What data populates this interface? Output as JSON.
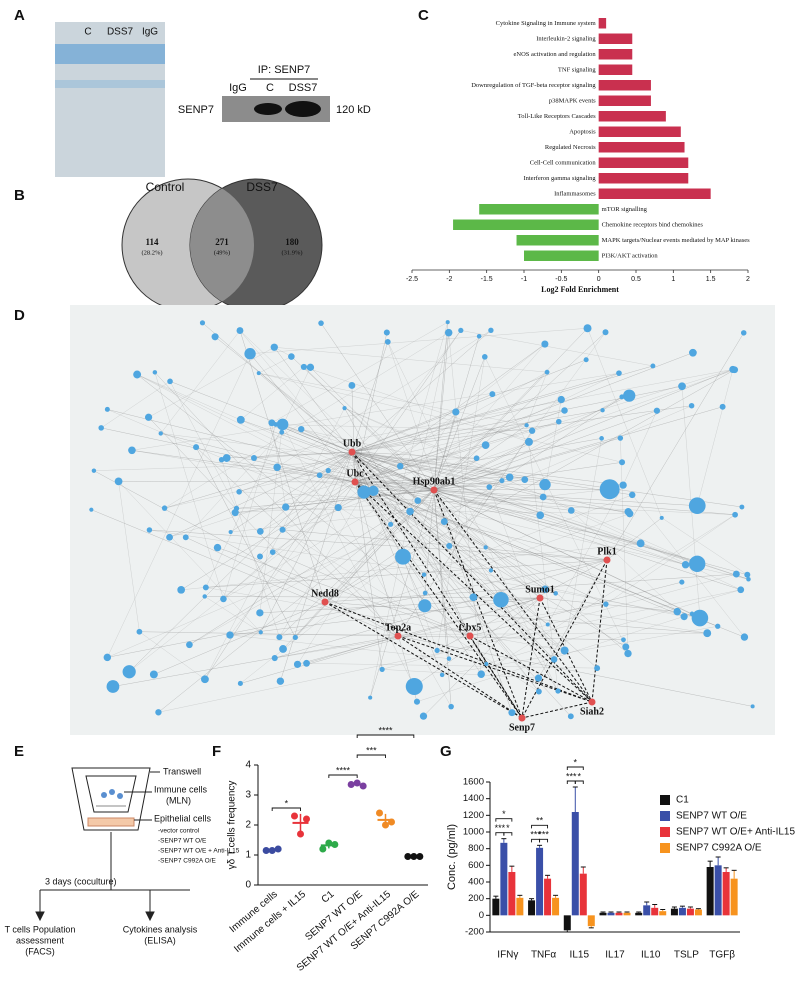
{
  "panel_labels": [
    "A",
    "B",
    "C",
    "D",
    "E",
    "F",
    "G"
  ],
  "western": {
    "gel_lanes": [
      "C",
      "DSS7",
      "IgG"
    ],
    "blot_title": "IP: SENP7",
    "blot_lanes": [
      "IgG",
      "C",
      "DSS7"
    ],
    "blot_protein": "SENP7",
    "blot_size": "120 kD"
  },
  "venn": {
    "sets": [
      "Control",
      "DSS7"
    ],
    "regions": [
      {
        "count": 114,
        "percent": "(28.2%)"
      },
      {
        "count": 271,
        "percent": "(49%)"
      },
      {
        "count": 180,
        "percent": "(31.9%)"
      }
    ]
  },
  "network": {
    "labeled_nodes": [
      "Ubb",
      "Ubc",
      "Hsp90ab1",
      "Plk1",
      "Sumo1",
      "Nedd8",
      "Top2a",
      "Cbx5",
      "Siah2",
      "Senp7"
    ]
  },
  "schematic": {
    "transwell": "Transwell",
    "immune_cells": "Immune cells",
    "immune_source": "(MLN)",
    "epithelial_cells": "Epithelial cells",
    "conditions": [
      "-vector control",
      "-SENP7 WT O/E",
      "-SENP7 WT O/E + Anti-IL15",
      "-SENP7 C992A O/E"
    ],
    "duration": "3 days (coculture)",
    "outcome_1": [
      "T cells Population",
      "assessment",
      "(FACS)"
    ],
    "outcome_2": [
      "Cytokines analysis",
      "(ELISA)"
    ]
  },
  "chart_data": [
    {
      "type": "hbar",
      "xlabel": "Log2 Fold Enrichment",
      "categories": [
        "Cytokine Signaling in Immune system",
        "Interleukin-2 signaling",
        "eNOS activation and regulation",
        "TNF signaling",
        "Downregulation of TGF-beta receptor signaling",
        "p38MAPK events",
        "Toll-Like Receptors Cascades",
        "Apoptosis",
        "Regulated Necrosis",
        "Cell-Cell communication",
        "Interferon gamma signaling",
        "Inflammasomes",
        "mTOR signalling",
        "Chemokine receptors bind chemokines",
        "MAPK targets/Nuclear events mediated by MAP kinases",
        "PI3K/AKT activation"
      ],
      "values": [
        0.1,
        0.45,
        0.45,
        0.45,
        0.7,
        0.7,
        0.9,
        1.1,
        1.15,
        1.2,
        1.2,
        1.5,
        -1.6,
        -1.95,
        -1.1,
        -1.0
      ],
      "xlim": [
        -2.5,
        2
      ],
      "xticks": [
        -2.5,
        -2,
        -1.5,
        -1,
        -0.5,
        0,
        0.5,
        1,
        1.5,
        2
      ],
      "color_positive": "#c9304f",
      "color_negative": "#5cb848"
    },
    {
      "type": "dot",
      "ylabel": "γδ T cells frequency",
      "categories": [
        "Immune cells",
        "Immune cells + IL15",
        "C1",
        "SENP7 WT O/E",
        "SENP7 WT O/E+ Anti-IL15",
        "SENP7 C992A O/E"
      ],
      "groups": [
        {
          "color": "#3b4ba0",
          "points": [
            1.15,
            1.15,
            1.2
          ],
          "mean": 1.17,
          "sem": 0.02
        },
        {
          "color": "#e8333a",
          "points": [
            2.3,
            1.7,
            2.2
          ],
          "mean": 2.07,
          "sem": 0.3
        },
        {
          "color": "#2eaa4a",
          "points": [
            1.2,
            1.4,
            1.35
          ],
          "mean": 1.32,
          "sem": 0.1
        },
        {
          "color": "#7a3fa0",
          "points": [
            3.35,
            3.4,
            3.3
          ],
          "mean": 3.35,
          "sem": 0.05
        },
        {
          "color": "#f08a24",
          "points": [
            2.4,
            2.0,
            2.1
          ],
          "mean": 2.17,
          "sem": 0.2
        },
        {
          "color": "#111111",
          "points": [
            0.95,
            0.95,
            0.95
          ],
          "mean": 0.95,
          "sem": 0.01
        }
      ],
      "ylim": [
        0,
        4
      ],
      "yticks": [
        0,
        1,
        2,
        3,
        4
      ],
      "significance": [
        {
          "groups": [
            0,
            1
          ],
          "label": "*"
        },
        {
          "groups": [
            2,
            3
          ],
          "label": "****"
        },
        {
          "groups": [
            3,
            4
          ],
          "label": "***"
        },
        {
          "groups": [
            3,
            5
          ],
          "label": "****"
        }
      ]
    },
    {
      "type": "grouped_bar",
      "ylabel": "Conc. (pg/ml)",
      "categories": [
        "IFNγ",
        "TNFα",
        "IL15",
        "IL17",
        "IL10",
        "TSLP",
        "TGFβ"
      ],
      "series": [
        {
          "name": "C1",
          "color": "#111111",
          "values": [
            200,
            180,
            -180,
            30,
            30,
            80,
            580
          ],
          "errors": [
            30,
            20,
            20,
            10,
            10,
            20,
            70
          ]
        },
        {
          "name": "SENP7 WT O/E",
          "color": "#3a4fa8",
          "values": [
            870,
            810,
            1240,
            30,
            120,
            90,
            600
          ],
          "errors": [
            50,
            30,
            300,
            10,
            40,
            20,
            100
          ]
        },
        {
          "name": "SENP7 WT O/E+ Anti-IL15",
          "color": "#e8333a",
          "values": [
            520,
            440,
            500,
            30,
            90,
            80,
            520
          ],
          "errors": [
            70,
            40,
            80,
            10,
            40,
            20,
            50
          ]
        },
        {
          "name": "SENP7 C992A O/E",
          "color": "#f7931e",
          "values": [
            210,
            210,
            -130,
            30,
            50,
            70,
            440
          ],
          "errors": [
            30,
            30,
            20,
            10,
            20,
            10,
            100
          ]
        }
      ],
      "ylim": [
        -200,
        1600
      ],
      "yticks": [
        -200,
        0,
        200,
        400,
        600,
        800,
        1000,
        1200,
        1400,
        1600
      ],
      "significance": [
        {
          "category": 0,
          "series": [
            0,
            2
          ],
          "label": "*"
        },
        {
          "category": 0,
          "series": [
            0,
            1
          ],
          "label": "***"
        },
        {
          "category": 0,
          "series": [
            1,
            2
          ],
          "label": "*"
        },
        {
          "category": 1,
          "series": [
            0,
            2
          ],
          "label": "**"
        },
        {
          "category": 1,
          "series": [
            0,
            1
          ],
          "label": "***"
        },
        {
          "category": 1,
          "series": [
            1,
            2
          ],
          "label": "***"
        },
        {
          "category": 2,
          "series": [
            0,
            2
          ],
          "label": "*"
        },
        {
          "category": 2,
          "series": [
            0,
            1
          ],
          "label": "***"
        },
        {
          "category": 2,
          "series": [
            1,
            2
          ],
          "label": "*"
        }
      ]
    }
  ]
}
